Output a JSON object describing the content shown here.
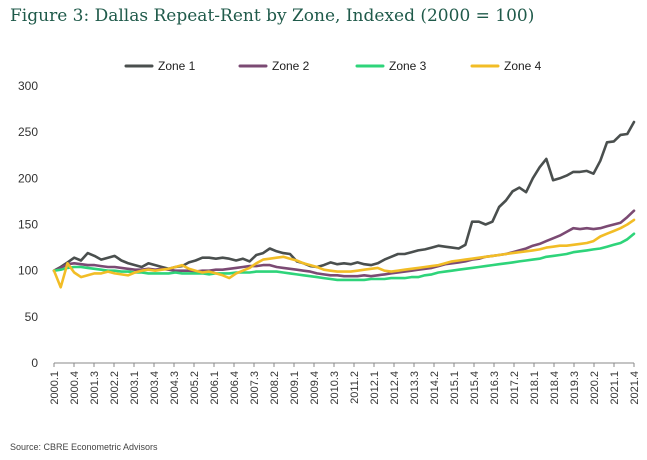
{
  "title": "Figure 3: Dallas Repeat-Rent by Zone, Indexed (2000 = 100)",
  "source": "Source: CBRE Econometric Advisors",
  "chart_data": {
    "type": "line",
    "title": "Figure 3: Dallas Repeat-Rent by Zone, Indexed (2000 = 100)",
    "xlabel": "",
    "ylabel": "",
    "ylim": [
      0,
      300
    ],
    "yticks": [
      0,
      50,
      100,
      150,
      200,
      250,
      300
    ],
    "grid": false,
    "legend_position": "top-center",
    "xtick_labels": [
      "2000.1",
      "2000.4",
      "2001.3",
      "2002.2",
      "2003.1",
      "2003.4",
      "2004.3",
      "2005.2",
      "2006.1",
      "2006.4",
      "2007.3",
      "2008.2",
      "2009.1",
      "2009.4",
      "2010.3",
      "2011.2",
      "2012.1",
      "2012.4",
      "2013.3",
      "2014.2",
      "2015.1",
      "2015.4",
      "2016.3",
      "2017.2",
      "2018.1",
      "2018.4",
      "2019.3",
      "2020.2",
      "2021.1",
      "2021.4"
    ],
    "series": [
      {
        "name": "Zone 1",
        "color": "#4a4f4e",
        "values": [
          100,
          104,
          109,
          114,
          111,
          119,
          116,
          112,
          114,
          116,
          111,
          108,
          106,
          104,
          108,
          106,
          104,
          102,
          104,
          105,
          109,
          111,
          114,
          114,
          113,
          114,
          113,
          111,
          113,
          110,
          117,
          119,
          124,
          121,
          119,
          118,
          110,
          108,
          105,
          104,
          106,
          109,
          107,
          108,
          107,
          109,
          107,
          106,
          108,
          112,
          115,
          118,
          118,
          120,
          122,
          123,
          125,
          127,
          126,
          125,
          124,
          128,
          153,
          153,
          150,
          153,
          169,
          176,
          186,
          190,
          185,
          200,
          212,
          221,
          198,
          200,
          203,
          207,
          207,
          208,
          205,
          219,
          239,
          240,
          247,
          248,
          261
        ]
      },
      {
        "name": "Zone 2",
        "color": "#7b4a73",
        "values": [
          100,
          103,
          107,
          108,
          107,
          106,
          106,
          105,
          104,
          104,
          103,
          102,
          101,
          101,
          102,
          101,
          102,
          101,
          100,
          100,
          100,
          99,
          100,
          100,
          101,
          101,
          102,
          103,
          104,
          105,
          105,
          106,
          106,
          104,
          103,
          102,
          101,
          100,
          99,
          97,
          96,
          95,
          95,
          94,
          94,
          94,
          95,
          94,
          95,
          96,
          97,
          98,
          99,
          100,
          101,
          102,
          103,
          105,
          107,
          108,
          109,
          110,
          112,
          113,
          115,
          116,
          117,
          118,
          120,
          122,
          124,
          127,
          129,
          132,
          135,
          138,
          142,
          146,
          145,
          146,
          145,
          146,
          148,
          150,
          152,
          158,
          165
        ]
      },
      {
        "name": "Zone 3",
        "color": "#2ed47a",
        "values": [
          100,
          101,
          103,
          104,
          104,
          103,
          102,
          101,
          100,
          100,
          99,
          99,
          98,
          98,
          97,
          97,
          97,
          97,
          98,
          97,
          97,
          97,
          97,
          96,
          97,
          97,
          97,
          98,
          98,
          98,
          99,
          99,
          99,
          99,
          98,
          97,
          96,
          95,
          94,
          93,
          92,
          91,
          90,
          90,
          90,
          90,
          90,
          91,
          91,
          91,
          92,
          92,
          92,
          93,
          93,
          95,
          96,
          98,
          99,
          100,
          101,
          102,
          103,
          104,
          105,
          106,
          107,
          108,
          109,
          110,
          111,
          112,
          113,
          115,
          116,
          117,
          118,
          120,
          121,
          122,
          123,
          124,
          126,
          128,
          130,
          134,
          140
        ]
      },
      {
        "name": "Zone 4",
        "color": "#f2bd26",
        "values": [
          100,
          82,
          108,
          98,
          93,
          95,
          97,
          97,
          99,
          97,
          96,
          95,
          98,
          100,
          101,
          100,
          101,
          102,
          104,
          106,
          102,
          100,
          98,
          99,
          97,
          95,
          92,
          97,
          100,
          103,
          108,
          112,
          113,
          114,
          115,
          113,
          111,
          108,
          106,
          104,
          101,
          100,
          99,
          99,
          99,
          100,
          101,
          102,
          103,
          100,
          99,
          100,
          101,
          102,
          103,
          104,
          105,
          106,
          108,
          110,
          111,
          112,
          113,
          114,
          115,
          116,
          117,
          118,
          119,
          120,
          121,
          122,
          123,
          125,
          126,
          127,
          127,
          128,
          129,
          130,
          132,
          137,
          140,
          143,
          146,
          150,
          155
        ]
      }
    ]
  }
}
